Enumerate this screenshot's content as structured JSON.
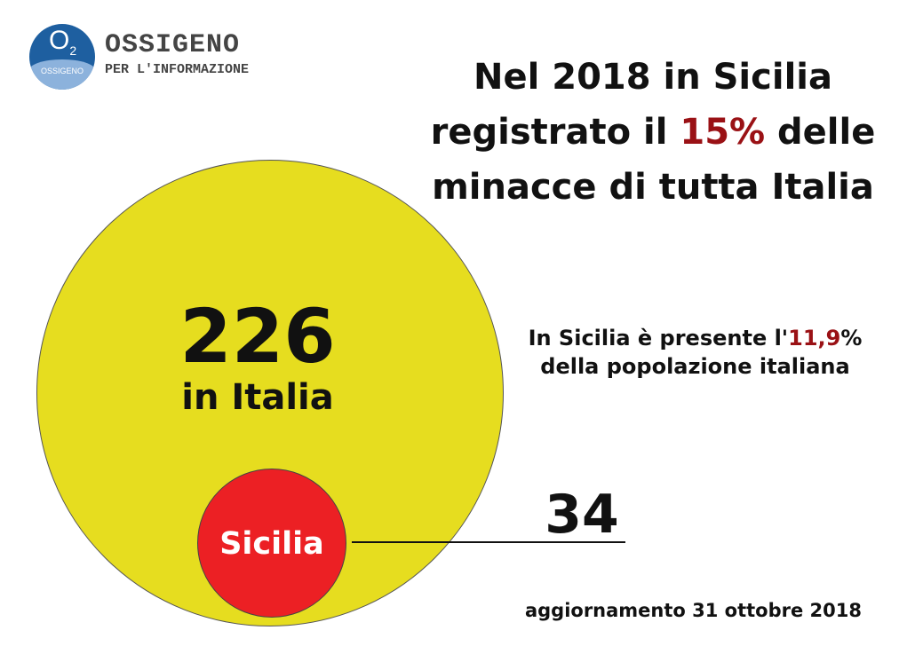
{
  "logo": {
    "symbol": "O",
    "symbol_sub": "2",
    "badge": "OSSIGENO",
    "name": "OSSIGENO",
    "tagline": "PER L'INFORMAZIONE"
  },
  "title": {
    "line1": "Nel 2018 in Sicilia",
    "line2_pre": "registrato il ",
    "line2_highlight": "15%",
    "line2_post": " delle",
    "line3": "minacce di tutta Italia"
  },
  "italy": {
    "value": "226",
    "label": "in Italia"
  },
  "sicily": {
    "label": "Sicilia",
    "value": "34"
  },
  "population": {
    "pre": "In Sicilia è presente l'",
    "highlight": "11,9",
    "post": "%",
    "line2": "della popolazione italiana"
  },
  "updated": "aggiornamento 31 ottobre 2018",
  "colors": {
    "yellow": "#e6dd1f",
    "red": "#ec2024",
    "highlight": "#9a1115"
  }
}
